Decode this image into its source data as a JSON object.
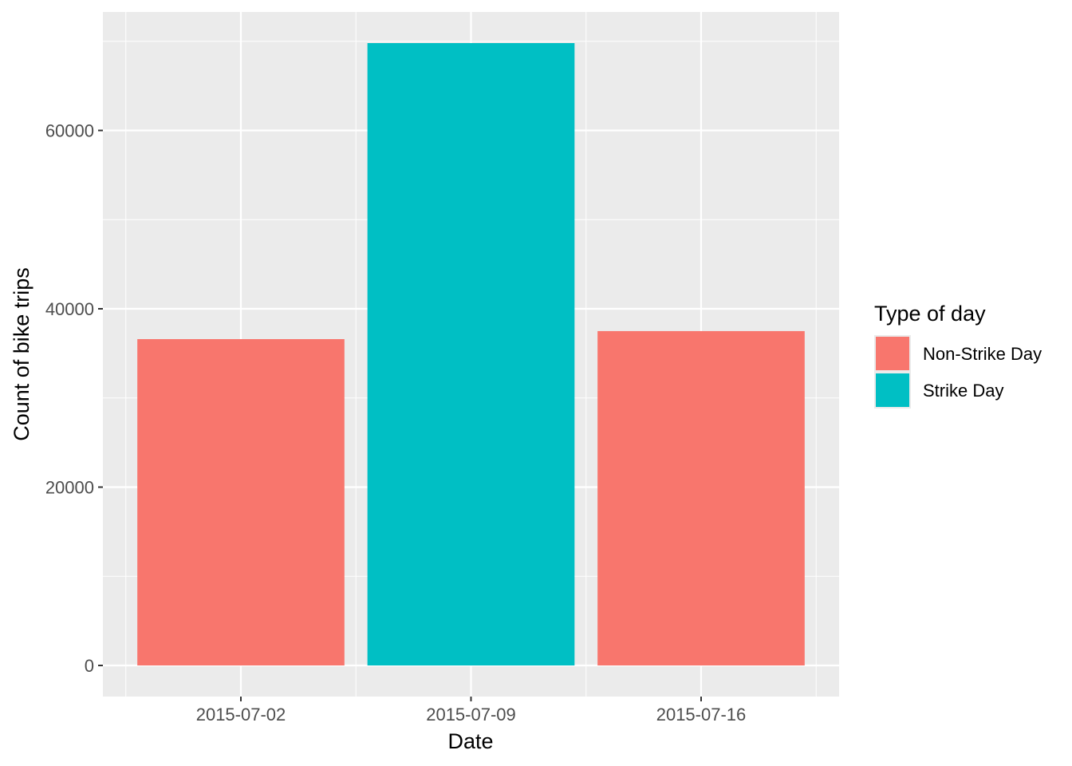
{
  "chart_data": {
    "type": "bar",
    "title": "",
    "xlabel": "Date",
    "ylabel": "Count of bike trips",
    "categories": [
      "2015-07-02",
      "2015-07-09",
      "2015-07-16"
    ],
    "values": [
      36600,
      69800,
      37500
    ],
    "fill_group": [
      "Non-Strike Day",
      "Strike Day",
      "Non-Strike Day"
    ],
    "yticks": [
      0,
      20000,
      40000,
      60000
    ],
    "ytick_labels": [
      "0",
      "20000",
      "40000",
      "60000"
    ],
    "ylim": [
      -3490,
      73290
    ],
    "grid": true,
    "legend": {
      "title": "Type of day",
      "placement": "right",
      "entries": [
        {
          "label": "Non-Strike Day",
          "color": "#F8766D"
        },
        {
          "label": "Strike Day",
          "color": "#00BFC4"
        }
      ]
    },
    "colors": {
      "panel": "#EBEBEB",
      "grid": "#FFFFFF"
    }
  }
}
